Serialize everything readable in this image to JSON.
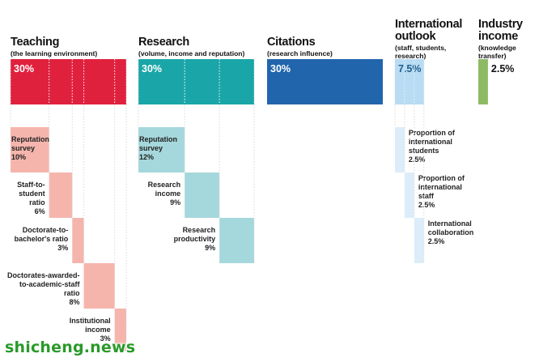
{
  "chart_data": {
    "type": "bar",
    "unit": "%",
    "pillars": [
      {
        "title": [
          "Teaching"
        ],
        "subtitle": [
          "(the learning environment)"
        ],
        "value": 30,
        "value_label": "30%",
        "color": "#e0213e",
        "sub_color": "#f5b5ad",
        "components": [
          {
            "label": [
              "Reputation",
              "survey"
            ],
            "value": 10,
            "value_label": "10%"
          },
          {
            "label": [
              "Staff-to-",
              "student",
              "ratio"
            ],
            "value": 6,
            "value_label": "6%"
          },
          {
            "label": [
              "Doctorate-to-",
              "bachelor's ratio"
            ],
            "value": 3,
            "value_label": "3%"
          },
          {
            "label": [
              "Doctorates-awarded-",
              "to-academic-staff",
              "ratio"
            ],
            "value": 8,
            "value_label": "8%"
          },
          {
            "label": [
              "Institutional",
              "income"
            ],
            "value": 3,
            "value_label": "3%"
          }
        ]
      },
      {
        "title": [
          "Research"
        ],
        "subtitle": [
          "(volume, income and reputation)"
        ],
        "value": 30,
        "value_label": "30%",
        "color": "#1aa6a8",
        "sub_color": "#a5d8dc",
        "components": [
          {
            "label": [
              "Reputation",
              "survey"
            ],
            "value": 12,
            "value_label": "12%"
          },
          {
            "label": [
              "Research",
              "income"
            ],
            "value": 9,
            "value_label": "9%"
          },
          {
            "label": [
              "Research",
              "productivity"
            ],
            "value": 9,
            "value_label": "9%"
          }
        ]
      },
      {
        "title": [
          "Citations"
        ],
        "subtitle": [
          "(research influence)"
        ],
        "value": 30,
        "value_label": "30%",
        "color": "#2165ad",
        "sub_color": "",
        "components": []
      },
      {
        "title": [
          "International",
          "outlook"
        ],
        "subtitle": [
          "(staff, students,",
          "research)"
        ],
        "value": 7.5,
        "value_label": "7.5%",
        "color": "#b8dcf3",
        "sub_color": "#dcedf9",
        "components": [
          {
            "label": [
              "Proportion of",
              "international",
              "students"
            ],
            "value": 2.5,
            "value_label": "2.5%"
          },
          {
            "label": [
              "Proportion of",
              "international",
              "staff"
            ],
            "value": 2.5,
            "value_label": "2.5%"
          },
          {
            "label": [
              "International",
              "collaboration"
            ],
            "value": 2.5,
            "value_label": "2.5%"
          }
        ]
      },
      {
        "title": [
          "Industry",
          "income"
        ],
        "subtitle": [
          "(knowledge",
          "transfer)"
        ],
        "value": 2.5,
        "value_label": "2.5%",
        "color": "#8fba64",
        "sub_color": "",
        "components": []
      }
    ],
    "colors": {
      "title_text": "#111111",
      "value_text_light": "#ffffff",
      "value_text_dark": "#1f5f8f",
      "guide_lines": "#d9d9d9"
    }
  },
  "watermark": "shicheng.news"
}
